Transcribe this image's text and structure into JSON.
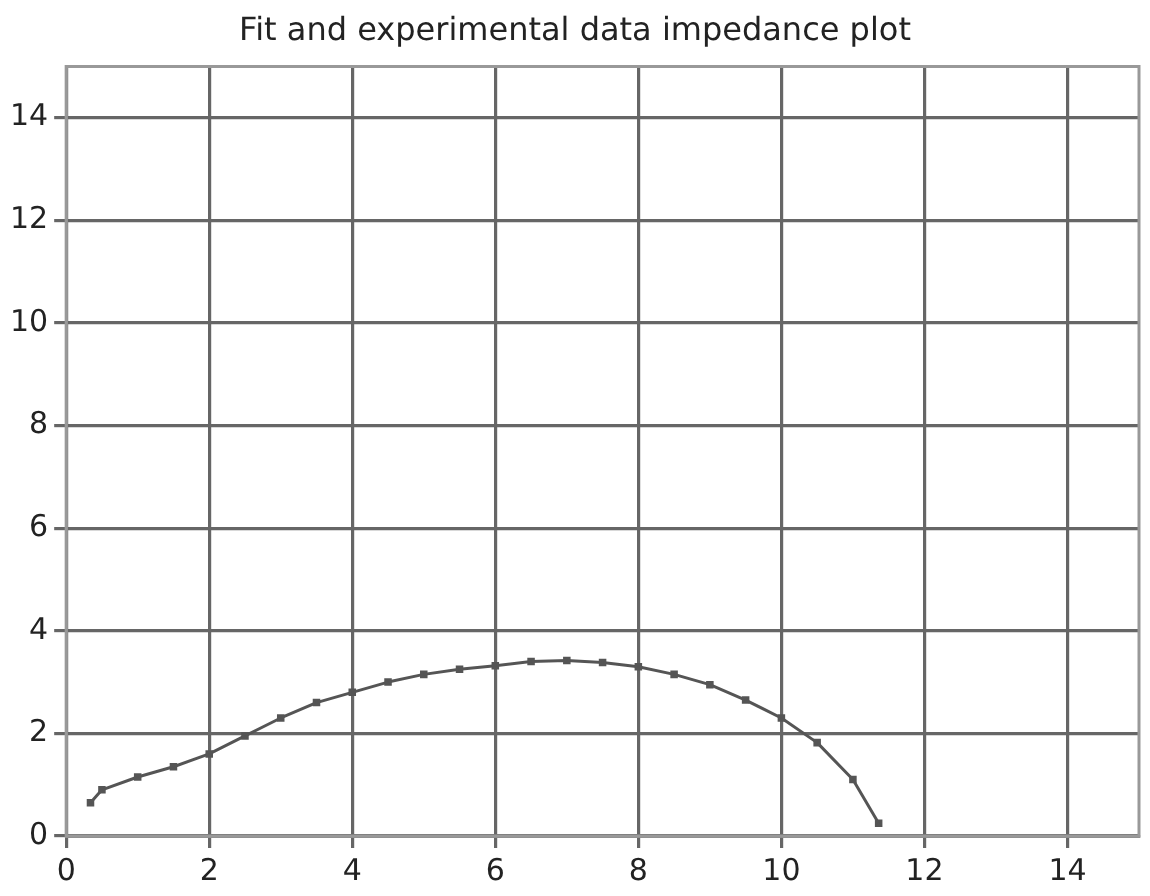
{
  "chart_data": {
    "type": "line",
    "title": "Fit and experimental data impedance plot",
    "series": [
      {
        "color": "#555555",
        "x": [
          0.34,
          0.5,
          1,
          1.5,
          2,
          2.5,
          3,
          3.5,
          4,
          4.5,
          5,
          5.5,
          6,
          6.5,
          7,
          7.5,
          8,
          8.5,
          9,
          9.5,
          10,
          10.5,
          11,
          11.36
        ],
        "values": [
          0.65,
          0.9,
          1.15,
          1.35,
          1.6,
          1.95,
          2.3,
          2.6,
          2.8,
          3.0,
          3.15,
          3.25,
          3.32,
          3.4,
          3.42,
          3.38,
          3.3,
          3.15,
          2.95,
          2.65,
          2.3,
          1.82,
          1.1,
          0.25
        ]
      }
    ],
    "xlim": [
      0,
      15
    ],
    "ylim": [
      0,
      15
    ],
    "xticks": [
      0,
      2,
      4,
      6,
      8,
      10,
      12,
      14
    ],
    "yticks": [
      0,
      2,
      4,
      6,
      8,
      10,
      12,
      14
    ],
    "grid": true,
    "legend": false,
    "marker": "square",
    "line_style": "solid"
  }
}
